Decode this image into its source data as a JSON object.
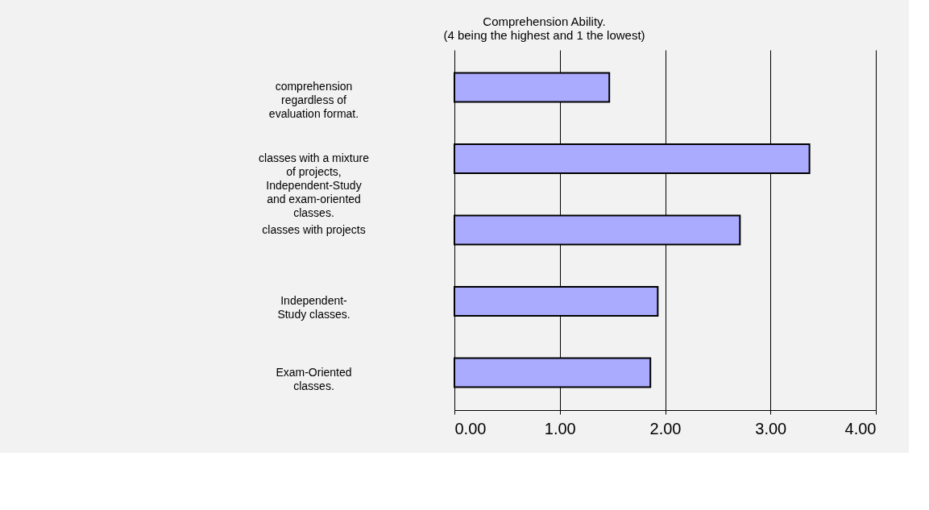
{
  "chart_data": {
    "type": "bar",
    "orientation": "horizontal",
    "title": "Comprehension Ability.\n(4 being the highest and 1 the lowest)",
    "categories": [
      "comprehension\nregardless of\nevaluation format.",
      "classes with a mixture\nof projects,\nIndependent-Study\nand exam-oriented\nclasses.",
      "classes with projects",
      "Independent-\nStudy classes.",
      "Exam-Oriented\nclasses."
    ],
    "values": [
      1.47,
      3.37,
      2.71,
      1.93,
      1.86
    ],
    "color": "#aaaaff",
    "xlim": [
      0,
      4
    ],
    "xticks": [
      {
        "value": 0,
        "label": "0.00"
      },
      {
        "value": 1,
        "label": "1.00"
      },
      {
        "value": 2,
        "label": "2.00"
      },
      {
        "value": 3,
        "label": "3.00"
      },
      {
        "value": 4,
        "label": "4.00"
      }
    ],
    "grid": "x"
  }
}
